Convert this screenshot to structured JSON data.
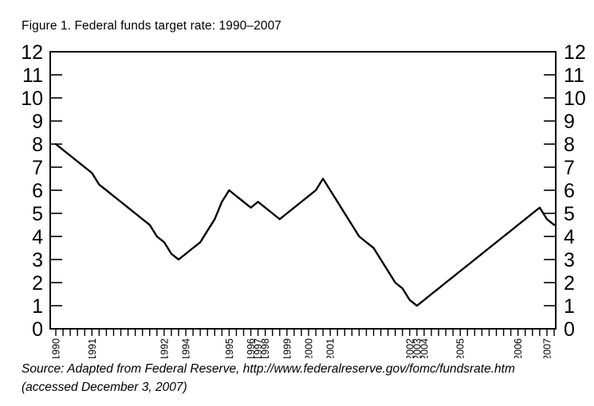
{
  "title": "Figure 1. Federal funds target rate: 1990–2007",
  "source": {
    "line1": "Source: Adapted from Federal Reserve, http://www.federalreserve.gov/fomc/fundsrate.htm",
    "line2": "(accessed December 3, 2007)"
  },
  "chart_data": {
    "type": "line",
    "title": "Figure 1. Federal funds target rate: 1990–2007",
    "xlabel": "",
    "ylabel": "",
    "ylim": [
      0,
      12
    ],
    "y_ticks": [
      0,
      1,
      2,
      3,
      4,
      5,
      6,
      7,
      8,
      9,
      10,
      11,
      12
    ],
    "y_axis_sides": "both",
    "grid": false,
    "line_color": "#000000",
    "background_color": "#ffffff",
    "x_axis_note": "one tick per federal funds target rate change event, in date order; year labels at first event of each year (no events in 1993)",
    "values": [
      8.0,
      7.75,
      7.5,
      7.25,
      7.0,
      6.75,
      6.25,
      6.0,
      5.75,
      5.5,
      5.25,
      5.0,
      4.75,
      4.5,
      4.0,
      3.75,
      3.25,
      3.0,
      3.25,
      3.5,
      3.75,
      4.25,
      4.75,
      5.5,
      6.0,
      5.75,
      5.5,
      5.25,
      5.5,
      5.25,
      5.0,
      4.75,
      5.0,
      5.25,
      5.5,
      5.75,
      6.0,
      6.5,
      6.0,
      5.5,
      5.0,
      4.5,
      4.0,
      3.75,
      3.5,
      3.0,
      2.5,
      2.0,
      1.75,
      1.25,
      1.0,
      1.25,
      1.5,
      1.75,
      2.0,
      2.25,
      2.5,
      2.75,
      3.0,
      3.25,
      3.5,
      3.75,
      4.0,
      4.25,
      4.5,
      4.75,
      5.0,
      5.25,
      4.75,
      4.5
    ],
    "year_labels": [
      [
        "1990",
        0
      ],
      [
        "1991",
        5
      ],
      [
        "1992",
        15
      ],
      [
        "1994",
        18
      ],
      [
        "1995",
        24
      ],
      [
        "1996",
        27
      ],
      [
        "1997",
        28
      ],
      [
        "1998",
        29
      ],
      [
        "1999",
        32
      ],
      [
        "2000",
        35
      ],
      [
        "2001",
        38
      ],
      [
        "2002",
        49
      ],
      [
        "2003",
        50
      ],
      [
        "2004",
        51
      ],
      [
        "2005",
        56
      ],
      [
        "2006",
        64
      ],
      [
        "2007",
        68
      ]
    ]
  }
}
